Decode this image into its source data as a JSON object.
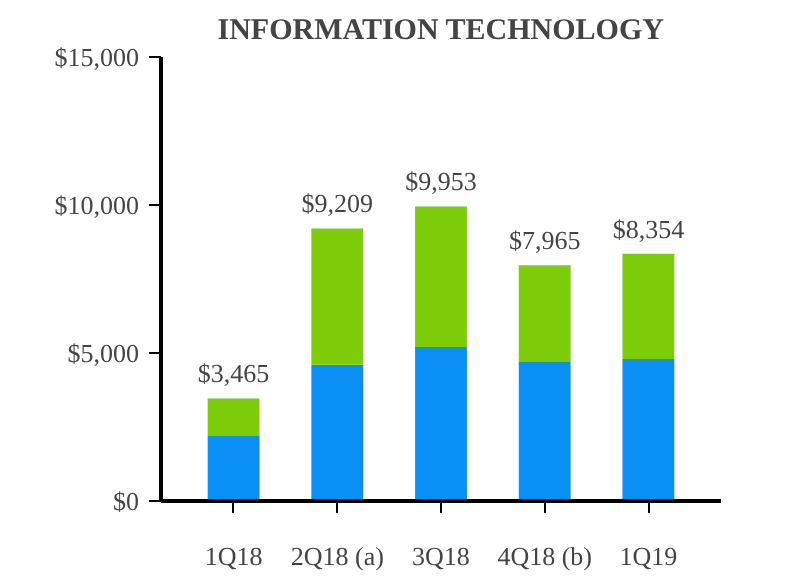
{
  "chart_data": {
    "type": "bar",
    "title": "INFORMATION TECHNOLOGY",
    "categories": [
      "1Q18",
      "2Q18 (a)",
      "3Q18",
      "4Q18 (b)",
      "1Q19"
    ],
    "stacked": true,
    "series": [
      {
        "color": "#0a8ff5",
        "values": [
          2200,
          4600,
          5200,
          4700,
          4800
        ]
      },
      {
        "color": "#7dcc0a",
        "values": [
          1265,
          4609,
          4753,
          3265,
          3554
        ]
      }
    ],
    "totals": [
      "$3,465",
      "$9,209",
      "$9,953",
      "$7,965",
      "$8,354"
    ],
    "ylim": [
      0,
      15000
    ],
    "yticks": [
      {
        "value": 0,
        "label": "$0"
      },
      {
        "value": 5000,
        "label": "$5,000"
      },
      {
        "value": 10000,
        "label": "$10,000"
      },
      {
        "value": 15000,
        "label": "$15,000"
      }
    ],
    "grid": false
  }
}
